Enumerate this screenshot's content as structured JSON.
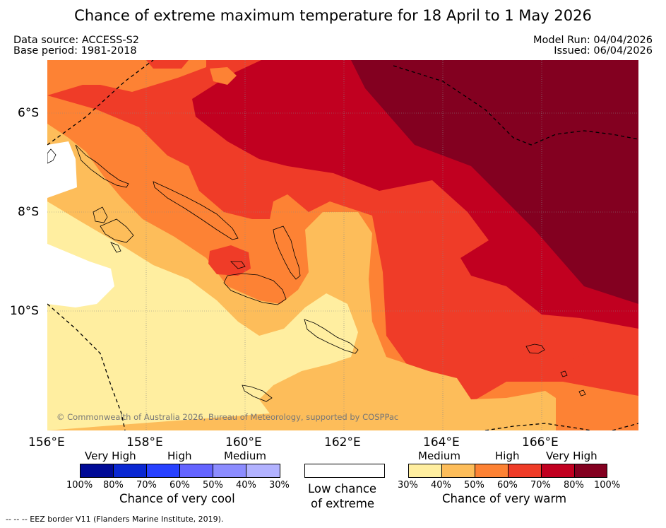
{
  "title": "Chance of extreme maximum temperature for 18 April to 1 May 2026",
  "data_source": "Data source: ACCESS-S2",
  "base_period": "Base period: 1981-2018",
  "model_run": "Model Run: 04/04/2026",
  "issued": "Issued: 06/04/2026",
  "copyright": "© Commonwealth of Australia 2026, Bureau of Meteorology, supported by COSPPac",
  "lat_labels": [
    "6°S",
    "8°S",
    "10°S"
  ],
  "lon_labels": [
    "156°E",
    "158°E",
    "160°E",
    "162°E",
    "164°E",
    "166°E"
  ],
  "colors": {
    "warm": [
      "#ffeea0",
      "#fdbd5a",
      "#fd8234",
      "#ef3c28",
      "#c10020",
      "#830020"
    ],
    "cool": [
      "#000a96",
      "#0a28d2",
      "#2841ff",
      "#6464ff",
      "#8c8cff",
      "#b2b2ff"
    ],
    "neutral": "#ffffff"
  },
  "legend_cool": {
    "very_high": "Very High",
    "high": "High",
    "medium": "Medium",
    "ticks": [
      "100%",
      "80%",
      "70%",
      "60%",
      "50%",
      "40%",
      "30%"
    ],
    "caption": "Chance of very cool"
  },
  "legend_neutral": {
    "line1": "Low chance",
    "line2": "of extreme"
  },
  "legend_warm": {
    "medium": "Medium",
    "high": "High",
    "very_high": "Very High",
    "ticks": [
      "30%",
      "40%",
      "50%",
      "60%",
      "70%",
      "80%",
      "100%"
    ],
    "caption": "Chance of very warm"
  },
  "footer": "--  --  -- EEZ border V11 (Flanders Marine Institute, 2019)."
}
